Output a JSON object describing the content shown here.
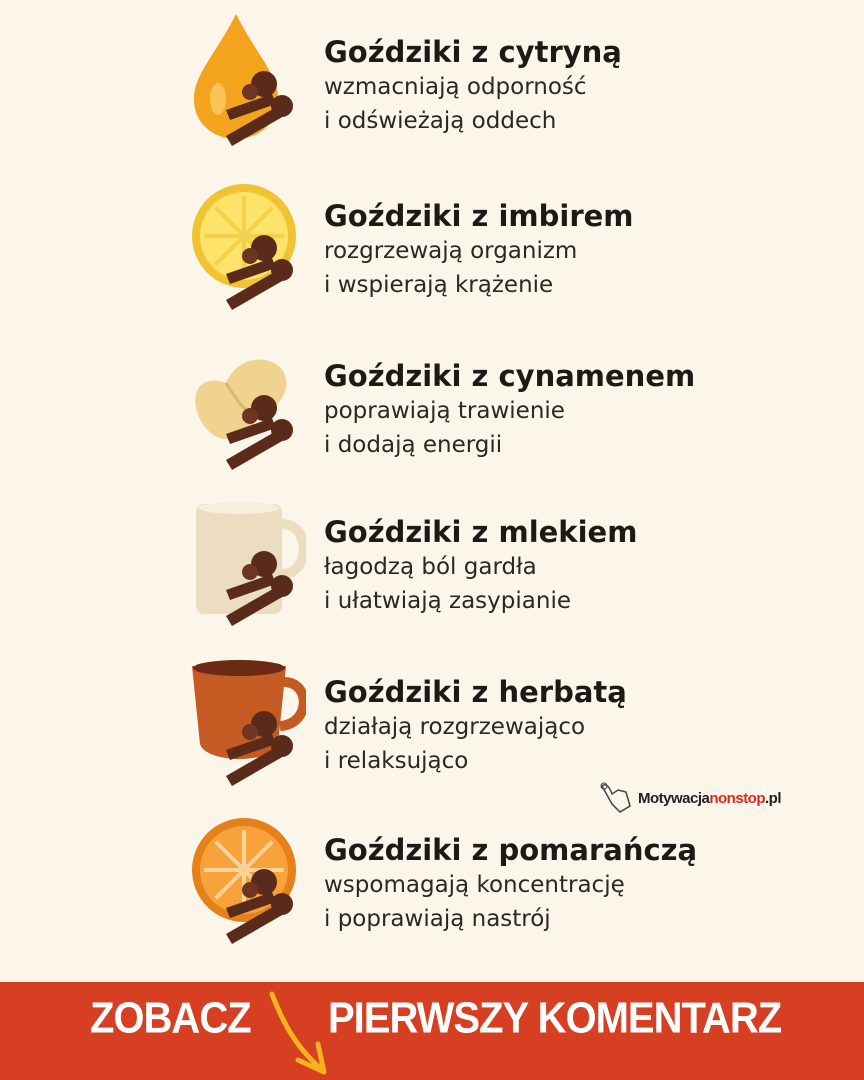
{
  "items": [
    {
      "icon": "lemon-drop-icon",
      "title": "Goździki z cytryną",
      "line1": "wzmacniają odporność",
      "line2": "i odświeżają oddech"
    },
    {
      "icon": "lemon-slice-icon",
      "title": "Goździki z imbirem",
      "line1": "rozgrzewają organizm",
      "line2": "i wspierają krążenie"
    },
    {
      "icon": "ginger-root-icon",
      "title": "Goździki z cynamenem",
      "line1": "poprawiają trawienie",
      "line2": "i dodają energii"
    },
    {
      "icon": "milk-mug-icon",
      "title": "Goździki z mlekiem",
      "line1": "łagodzą ból gardła",
      "line2": "i ułatwiają zasypianie"
    },
    {
      "icon": "tea-cup-icon",
      "title": "Goździki z herbatą",
      "line1": "działają rozgrzewająco",
      "line2": "i relaksująco"
    },
    {
      "icon": "orange-slice-icon",
      "title": "Goździki z pomarańczą",
      "line1": "wspomagają koncentrację",
      "line2": "i poprawiają nastrój"
    }
  ],
  "logo": {
    "part1": "Motywacja",
    "part2": "nonstop",
    "part3": ".pl"
  },
  "banner": {
    "left": "ZOBACZ",
    "right": "PIERWSZY KOMENTARZ"
  },
  "colors": {
    "background": "#fcf6ea",
    "banner": "#d63f22",
    "clove": "#5a2a1a",
    "arrow": "#f5b320"
  }
}
